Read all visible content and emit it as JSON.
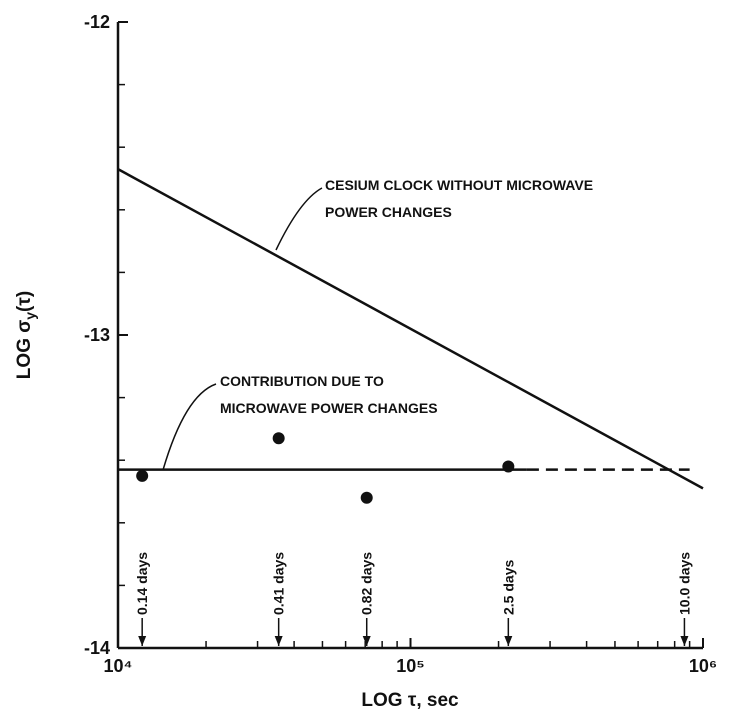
{
  "chart_data": {
    "type": "line",
    "xlabel": "LOG τ, sec",
    "ylabel": [
      "LOG σ",
      "y",
      "(τ)"
    ],
    "xscale": "log",
    "xlim": [
      10000,
      1000000
    ],
    "ylim": [
      -14,
      -12
    ],
    "xticks": [
      {
        "value": 10000,
        "label": "10⁴"
      },
      {
        "value": 100000,
        "label": "10⁵"
      },
      {
        "value": 1000000,
        "label": "10⁶"
      }
    ],
    "yticks": [
      -14,
      -13,
      -12
    ],
    "xminor_ticks": [
      20000,
      30000,
      40000,
      50000,
      60000,
      70000,
      80000,
      90000,
      200000,
      300000,
      400000,
      500000,
      600000,
      700000,
      800000,
      900000
    ],
    "yminor_ticks": [
      -13.8,
      -13.6,
      -13.4,
      -13.2,
      -12.8,
      -12.6,
      -12.4,
      -12.2
    ],
    "lines": [
      {
        "name": "CESIUM CLOCK WITHOUT MICROWAVE POWER CHANGES",
        "x": [
          10000,
          1000000
        ],
        "values": [
          -12.47,
          -13.49
        ],
        "style": "solid",
        "color": "#111111"
      },
      {
        "name": "CONTRIBUTION DUE TO MICROWAVE POWER CHANGES",
        "x": [
          10000,
          250000
        ],
        "values": [
          -13.43,
          -13.43
        ],
        "style": "solid",
        "color": "#111111"
      },
      {
        "x": [
          250000,
          900000
        ],
        "values": [
          -13.43,
          -13.43
        ],
        "style": "dashed",
        "color": "#111111"
      }
    ],
    "points": {
      "x": [
        12096,
        35424,
        70848,
        216000
      ],
      "values": [
        -13.45,
        -13.33,
        -13.52,
        -13.42
      ],
      "color": "#111111"
    },
    "annotations": [
      {
        "lines": [
          "CESIUM CLOCK WITHOUT MICROWAVE",
          "POWER CHANGES"
        ]
      },
      {
        "lines": [
          "CONTRIBUTION DUE TO",
          "MICROWAVE POWER CHANGES"
        ]
      }
    ],
    "markers": [
      {
        "x": 12096,
        "label": "0.14 days"
      },
      {
        "x": 35424,
        "label": "0.41 days"
      },
      {
        "x": 70848,
        "label": "0.82 days"
      },
      {
        "x": 216000,
        "label": "2.5 days"
      },
      {
        "x": 864000,
        "label": "10.0 days"
      }
    ]
  }
}
